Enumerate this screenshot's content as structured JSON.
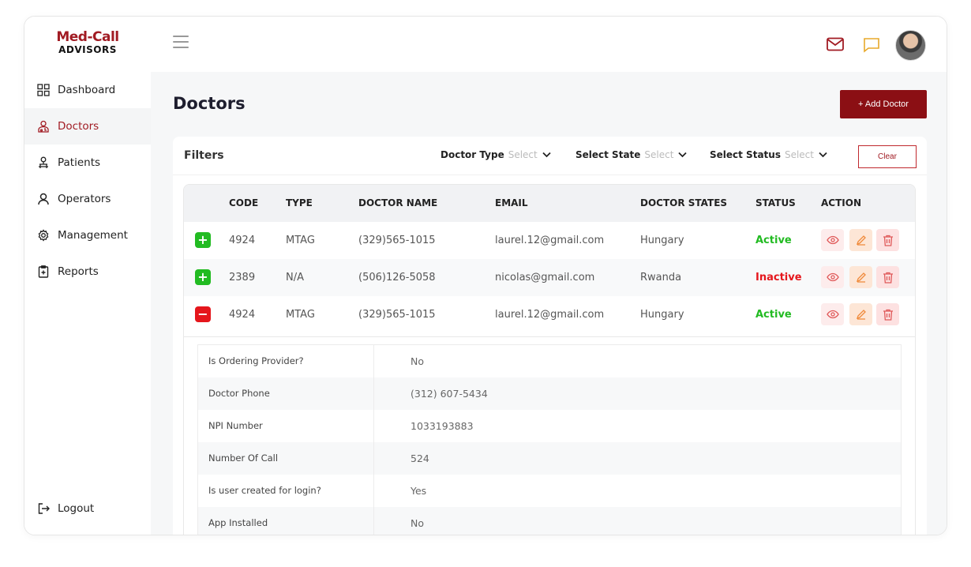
{
  "brand": {
    "line1": "Med-Call",
    "line2": "ADVISORS"
  },
  "sidebar": {
    "items": [
      {
        "label": "Dashboard",
        "icon": "grid-icon"
      },
      {
        "label": "Doctors",
        "icon": "doctor-icon"
      },
      {
        "label": "Patients",
        "icon": "patient-icon"
      },
      {
        "label": "Operators",
        "icon": "user-icon"
      },
      {
        "label": "Management",
        "icon": "gear-icon"
      },
      {
        "label": "Reports",
        "icon": "report-icon"
      }
    ],
    "active": "Doctors",
    "logout": "Logout"
  },
  "header": {
    "title": "Doctors",
    "add_button": "+ Add Doctor"
  },
  "filters": {
    "label": "Filters",
    "doctor_type": {
      "label": "Doctor Type",
      "value": "Select"
    },
    "state": {
      "label": "Select State",
      "value": "Select"
    },
    "status": {
      "label": "Select Status",
      "value": "Select"
    },
    "clear": "Clear"
  },
  "table": {
    "columns": [
      "CODE",
      "TYPE",
      "DOCTOR NAME",
      "EMAIL",
      "DOCTOR STATES",
      "STATUS",
      "ACTION"
    ],
    "rows": [
      {
        "expander": "+",
        "code": "4924",
        "type": "MTAG",
        "name": "(329)565-1015",
        "email": "laurel.12@gmail.com",
        "state": "Hungary",
        "status": "Active"
      },
      {
        "expander": "+",
        "code": "2389",
        "type": "N/A",
        "name": "(506)126-5058",
        "email": "nicolas@gmail.com",
        "state": "Rwanda",
        "status": "Inactive"
      },
      {
        "expander": "−",
        "code": "4924",
        "type": "MTAG",
        "name": "(329)565-1015",
        "email": "laurel.12@gmail.com",
        "state": "Hungary",
        "status": "Active"
      }
    ]
  },
  "details": [
    {
      "key": "Is Ordering Provider?",
      "value": "No"
    },
    {
      "key": "Doctor Phone",
      "value": "(312) 607-5434"
    },
    {
      "key": "NPI Number",
      "value": "1033193883"
    },
    {
      "key": "Number Of Call",
      "value": "524"
    },
    {
      "key": "Is user created for login?",
      "value": "Yes"
    },
    {
      "key": "App Installed",
      "value": "No"
    }
  ],
  "colors": {
    "brand": "#a11b23",
    "button": "#8b0f14",
    "active": "#22bb22",
    "inactive": "#e5161c"
  }
}
